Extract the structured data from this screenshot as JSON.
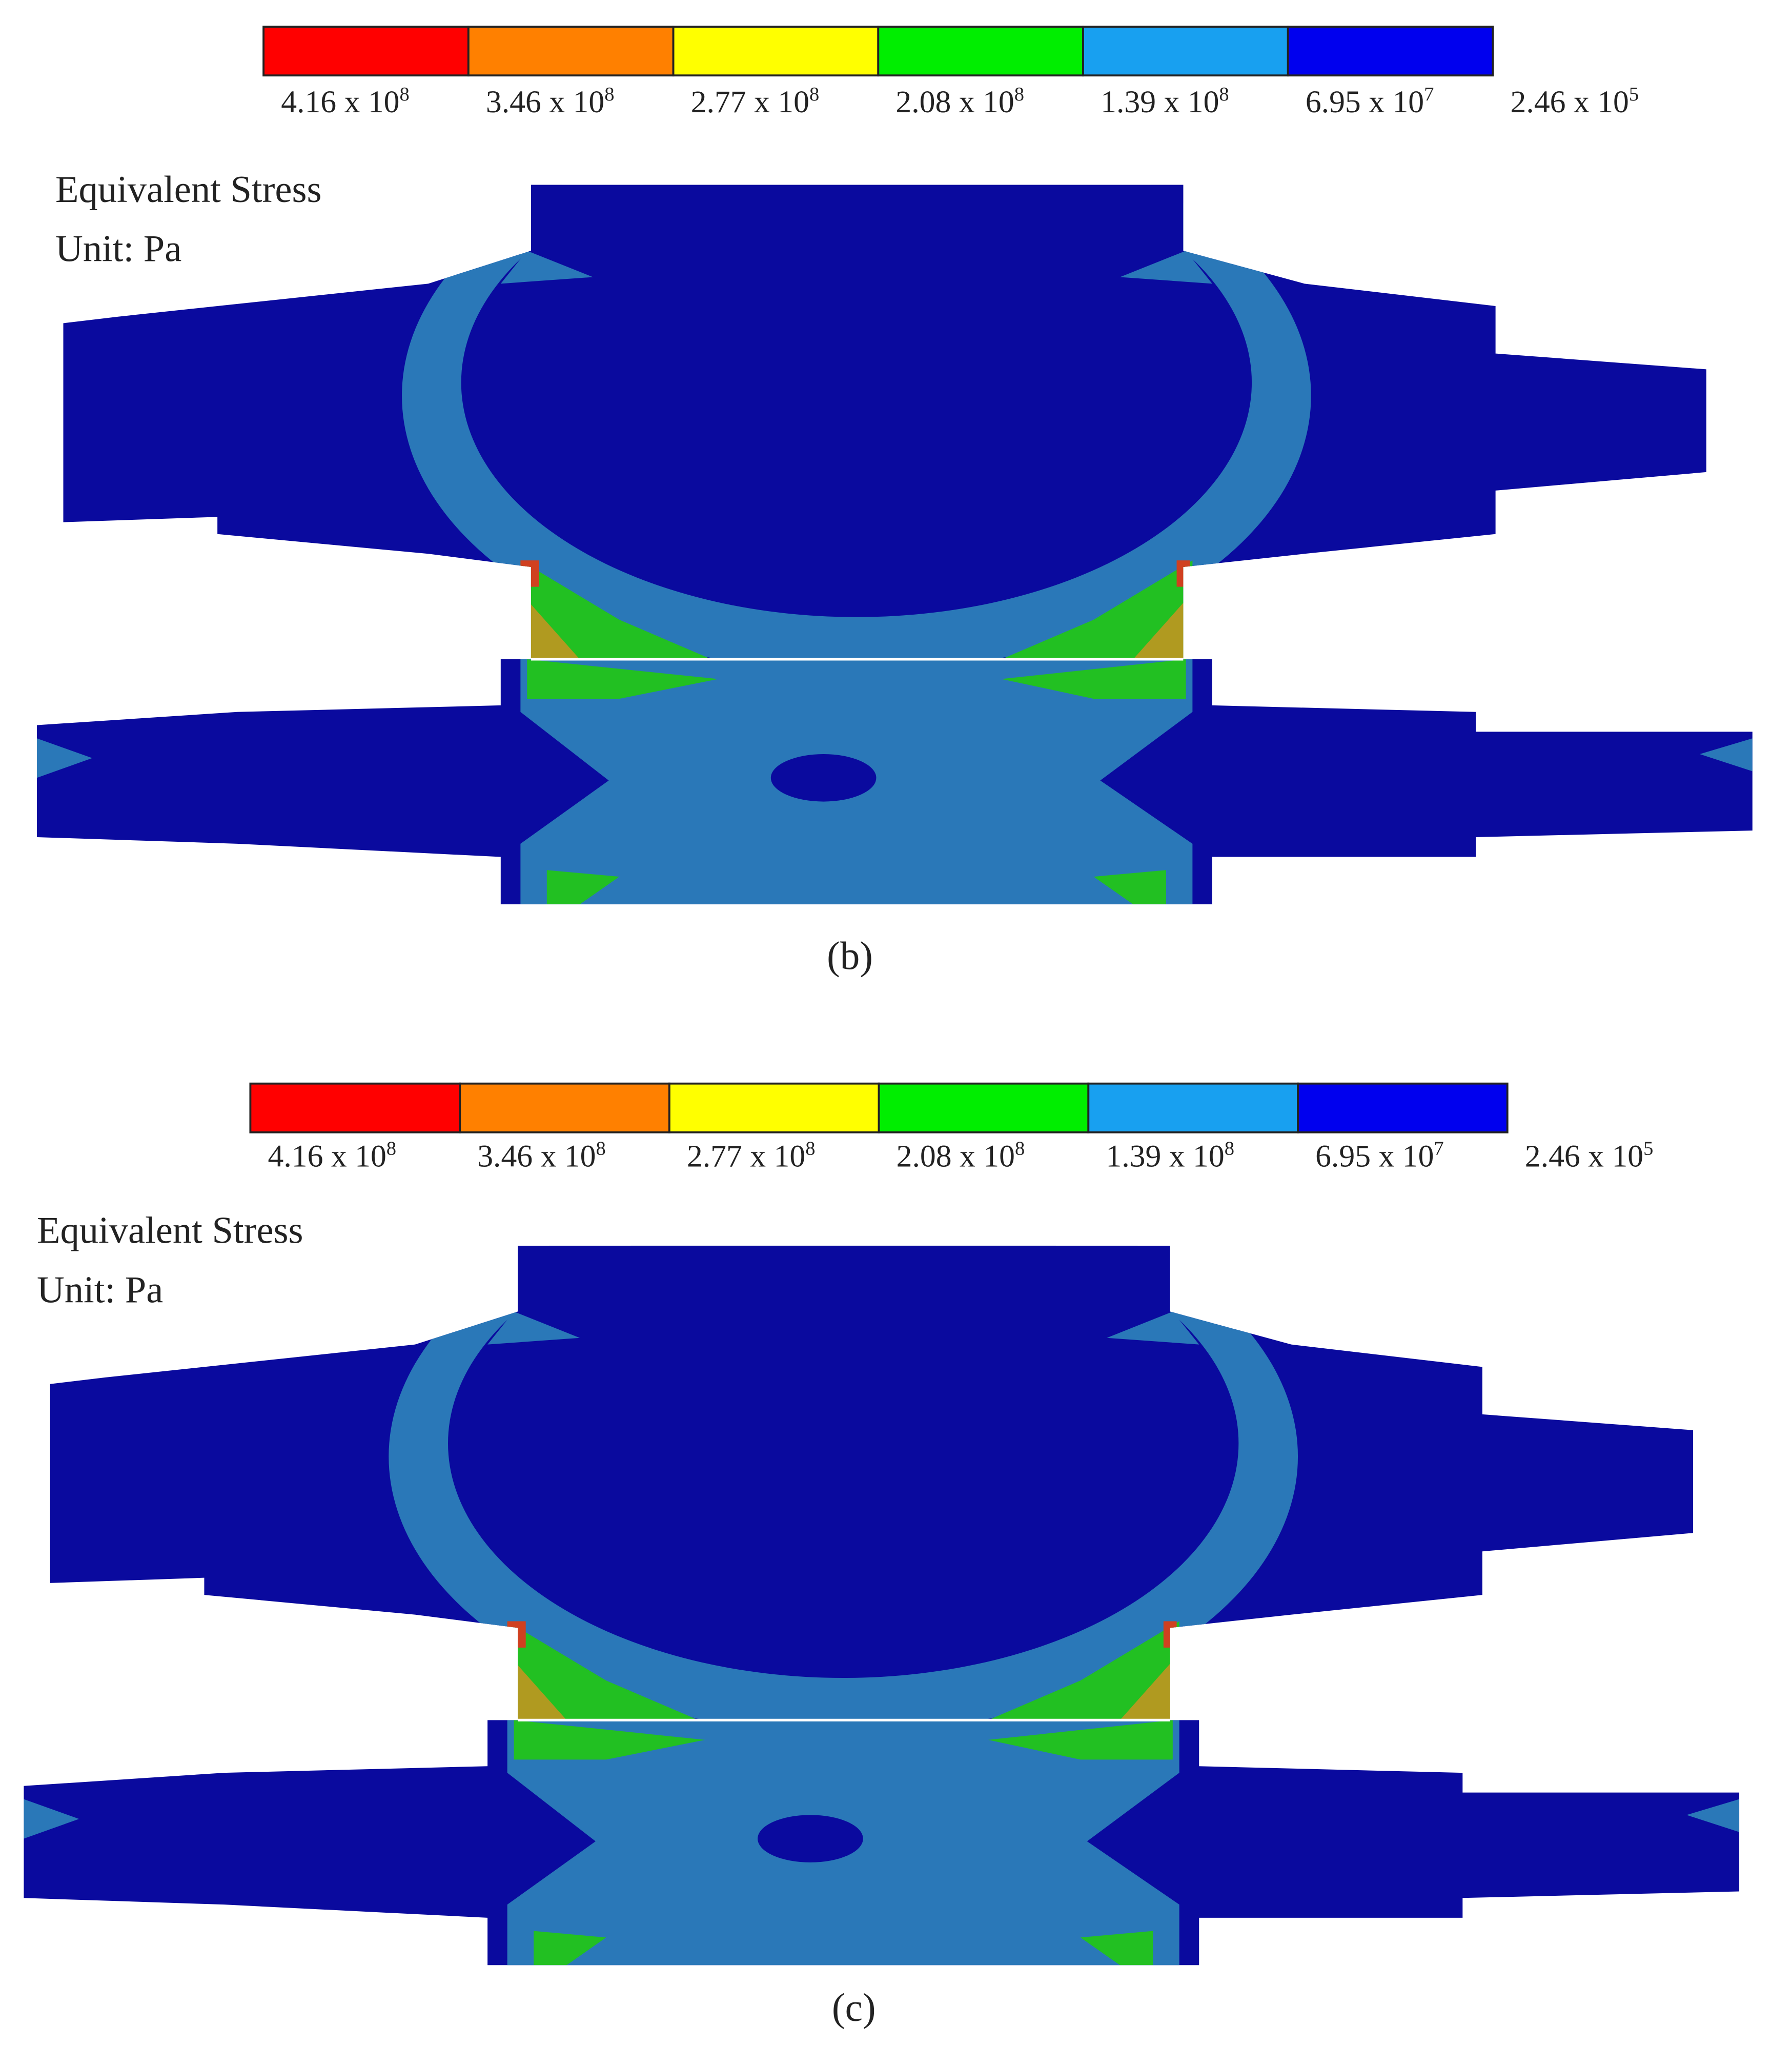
{
  "panels": [
    {
      "legend": {
        "colors": [
          "#ff0000",
          "#ff8000",
          "#ffff00",
          "#00ee00",
          "#18a0f0",
          "#0000ee"
        ],
        "labels": [
          {
            "base": "4.16 x 10",
            "exp": "8"
          },
          {
            "base": "3.46 x 10",
            "exp": "8"
          },
          {
            "base": "2.77 x 10",
            "exp": "8"
          },
          {
            "base": "2.08 x 10",
            "exp": "8"
          },
          {
            "base": "1.39 x 10",
            "exp": "8"
          },
          {
            "base": "6.95 x 10",
            "exp": "7"
          },
          {
            "base": "2.46 x 10",
            "exp": "5"
          }
        ]
      },
      "quantity": "Equivalent Stress",
      "unit": "Unit: Pa",
      "caption": "(b)"
    },
    {
      "legend": {
        "colors": [
          "#ff0000",
          "#ff8000",
          "#ffff00",
          "#00ee00",
          "#18a0f0",
          "#0000ee"
        ],
        "labels": [
          {
            "base": "4.16 x 10",
            "exp": "8"
          },
          {
            "base": "3.46 x 10",
            "exp": "8"
          },
          {
            "base": "2.77 x 10",
            "exp": "8"
          },
          {
            "base": "2.08 x 10",
            "exp": "8"
          },
          {
            "base": "1.39 x 10",
            "exp": "8"
          },
          {
            "base": "6.95 x 10",
            "exp": "7"
          },
          {
            "base": "2.46 x 10",
            "exp": "5"
          }
        ]
      },
      "quantity": "Equivalent Stress",
      "unit": "Unit: Pa",
      "caption": "(c)"
    }
  ]
}
